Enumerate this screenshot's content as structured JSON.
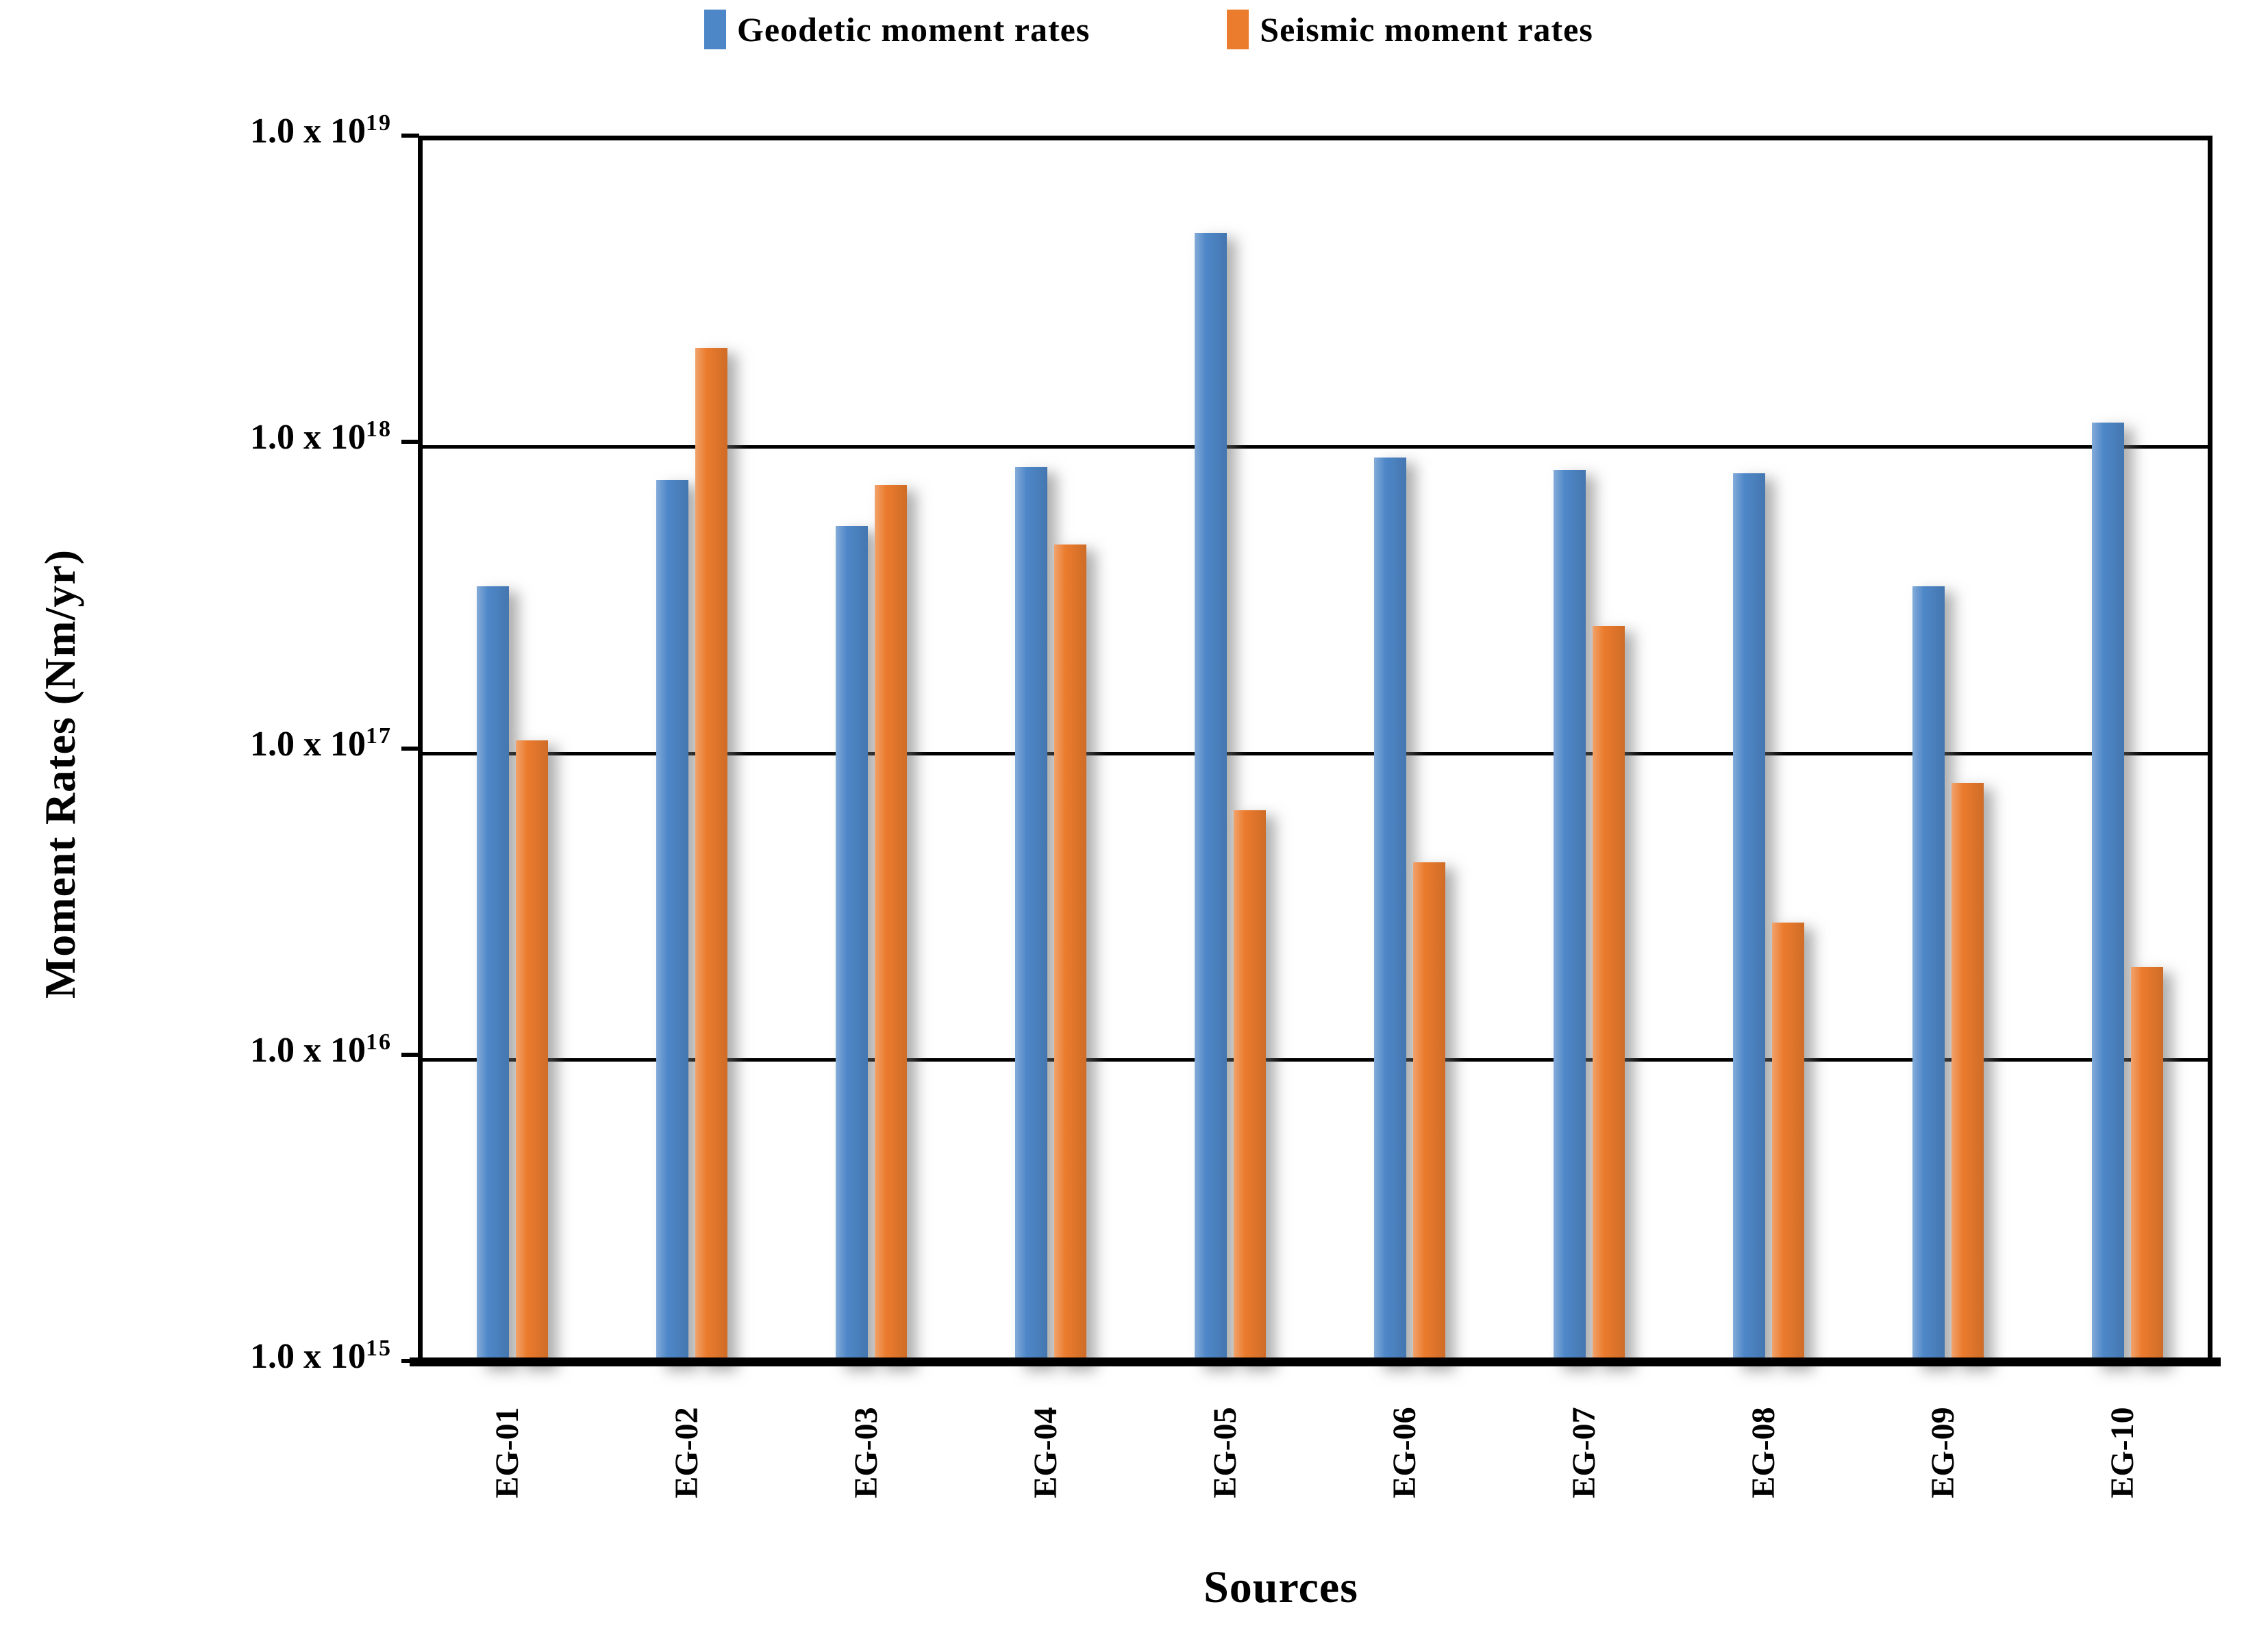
{
  "chart_data": {
    "type": "bar",
    "scale": "log",
    "grid": "horizontal",
    "legend_position": "top",
    "xlabel": "Sources",
    "ylabel": "Moment Rates (Nm/yr)",
    "ylim": [
      1000000000000000.0,
      1e+19
    ],
    "y_ticks": [
      {
        "mantissa": "1.0 x 10",
        "exp": "19",
        "value": 1e+19
      },
      {
        "mantissa": "1.0 x 10",
        "exp": "18",
        "value": 1e+18
      },
      {
        "mantissa": "1.0 x 10",
        "exp": "17",
        "value": 1e+17
      },
      {
        "mantissa": "1.0 x 10",
        "exp": "16",
        "value": 1e+16
      },
      {
        "mantissa": "1.0 x 10",
        "exp": "15",
        "value": 1000000000000000.0
      }
    ],
    "categories": [
      "EG-01",
      "EG-02",
      "EG-03",
      "EG-04",
      "EG-05",
      "EG-06",
      "EG-07",
      "EG-08",
      "EG-09",
      "EG-10"
    ],
    "series": [
      {
        "name": "Geodetic moment rates",
        "color": "#4E87C8",
        "values": [
          3.5e+17,
          7.8e+17,
          5.5e+17,
          8.6e+17,
          5e+18,
          9.2e+17,
          8.4e+17,
          8.2e+17,
          3.5e+17,
          1.2e+18
        ]
      },
      {
        "name": "Seismic moment rates",
        "color": "#EB7B2D",
        "values": [
          1.1e+17,
          2.1e+18,
          7.5e+17,
          4.8e+17,
          6.5e+16,
          4.4e+16,
          2.6e+17,
          2.8e+16,
          8e+16,
          2e+16
        ]
      }
    ]
  }
}
